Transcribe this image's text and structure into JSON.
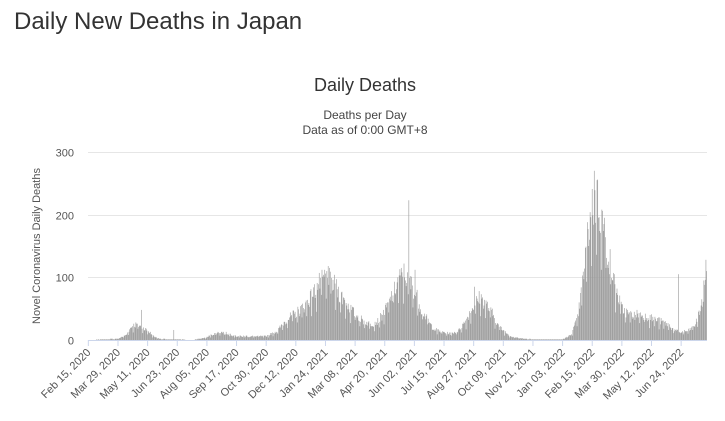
{
  "page": {
    "title": "Daily New Deaths in Japan"
  },
  "chart_data": {
    "type": "bar",
    "title": "Daily Deaths",
    "subtitle": "Deaths per Day",
    "subtitle2": "Data as of 0:00 GMT+8",
    "ylabel": "Novel Coronavirus Daily Deaths",
    "xlabel": "",
    "ylim": [
      0,
      300
    ],
    "yticks": [
      0,
      100,
      200,
      300
    ],
    "grid": true,
    "bar_color": "#999999",
    "x_start": "2020-02-15",
    "x_end": "2022-07-31",
    "x_tick_labels": [
      "Feb 15, 2020",
      "Mar 29, 2020",
      "May 11, 2020",
      "Jun 23, 2020",
      "Aug 05, 2020",
      "Sep 17, 2020",
      "Oct 30, 2020",
      "Dec 12, 2020",
      "Jan 24, 2021",
      "Mar 08, 2021",
      "Apr 20, 2021",
      "Jun 02, 2021",
      "Jul 15, 2021",
      "Aug 27, 2021",
      "Oct 09, 2021",
      "Nov 21, 2021",
      "Jan 03, 2022",
      "Feb 15, 2022",
      "Mar 30, 2022",
      "May 12, 2022",
      "Jun 24, 2022"
    ],
    "trend": [
      [
        "2020-02-15",
        0
      ],
      [
        "2020-03-10",
        1
      ],
      [
        "2020-03-29",
        2
      ],
      [
        "2020-04-10",
        8
      ],
      [
        "2020-04-18",
        22
      ],
      [
        "2020-04-25",
        25
      ],
      [
        "2020-05-01",
        22
      ],
      [
        "2020-05-11",
        15
      ],
      [
        "2020-05-20",
        6
      ],
      [
        "2020-05-28",
        2
      ],
      [
        "2020-06-10",
        1
      ],
      [
        "2020-06-23",
        1
      ],
      [
        "2020-07-15",
        0
      ],
      [
        "2020-08-05",
        4
      ],
      [
        "2020-08-15",
        10
      ],
      [
        "2020-08-25",
        13
      ],
      [
        "2020-09-05",
        10
      ],
      [
        "2020-09-17",
        6
      ],
      [
        "2020-10-01",
        6
      ],
      [
        "2020-10-30",
        6
      ],
      [
        "2020-11-15",
        14
      ],
      [
        "2020-11-25",
        28
      ],
      [
        "2020-12-05",
        38
      ],
      [
        "2020-12-12",
        42
      ],
      [
        "2020-12-25",
        55
      ],
      [
        "2021-01-05",
        72
      ],
      [
        "2021-01-15",
        90
      ],
      [
        "2021-01-24",
        100
      ],
      [
        "2021-02-01",
        95
      ],
      [
        "2021-02-15",
        72
      ],
      [
        "2021-03-01",
        50
      ],
      [
        "2021-03-08",
        42
      ],
      [
        "2021-03-20",
        30
      ],
      [
        "2021-04-01",
        25
      ],
      [
        "2021-04-10",
        30
      ],
      [
        "2021-04-20",
        45
      ],
      [
        "2021-05-01",
        72
      ],
      [
        "2021-05-10",
        95
      ],
      [
        "2021-05-18",
        105
      ],
      [
        "2021-05-25",
        95
      ],
      [
        "2021-06-02",
        80
      ],
      [
        "2021-06-12",
        50
      ],
      [
        "2021-06-25",
        25
      ],
      [
        "2021-07-05",
        15
      ],
      [
        "2021-07-15",
        12
      ],
      [
        "2021-07-25",
        10
      ],
      [
        "2021-08-05",
        15
      ],
      [
        "2021-08-15",
        30
      ],
      [
        "2021-08-27",
        55
      ],
      [
        "2021-09-05",
        68
      ],
      [
        "2021-09-12",
        60
      ],
      [
        "2021-09-22",
        45
      ],
      [
        "2021-10-01",
        25
      ],
      [
        "2021-10-09",
        15
      ],
      [
        "2021-10-20",
        6
      ],
      [
        "2021-11-01",
        3
      ],
      [
        "2021-11-21",
        1
      ],
      [
        "2021-12-20",
        1
      ],
      [
        "2022-01-03",
        1
      ],
      [
        "2022-01-15",
        8
      ],
      [
        "2022-01-25",
        35
      ],
      [
        "2022-02-01",
        90
      ],
      [
        "2022-02-08",
        160
      ],
      [
        "2022-02-15",
        215
      ],
      [
        "2022-02-22",
        225
      ],
      [
        "2022-03-01",
        195
      ],
      [
        "2022-03-10",
        140
      ],
      [
        "2022-03-20",
        85
      ],
      [
        "2022-03-30",
        50
      ],
      [
        "2022-04-10",
        40
      ],
      [
        "2022-04-20",
        42
      ],
      [
        "2022-05-01",
        40
      ],
      [
        "2022-05-12",
        35
      ],
      [
        "2022-05-25",
        30
      ],
      [
        "2022-06-05",
        25
      ],
      [
        "2022-06-15",
        15
      ],
      [
        "2022-06-24",
        12
      ],
      [
        "2022-07-05",
        15
      ],
      [
        "2022-07-15",
        25
      ],
      [
        "2022-07-22",
        50
      ],
      [
        "2022-07-27",
        80
      ],
      [
        "2022-07-31",
        120
      ]
    ],
    "notable_points": [
      [
        "2020-05-02",
        48
      ],
      [
        "2020-06-18",
        16
      ],
      [
        "2021-01-28",
        118
      ],
      [
        "2021-05-25",
        223
      ],
      [
        "2021-06-03",
        112
      ],
      [
        "2021-08-28",
        85
      ],
      [
        "2022-02-18",
        270
      ],
      [
        "2022-02-22",
        255
      ],
      [
        "2022-06-20",
        105
      ],
      [
        "2022-07-30",
        128
      ]
    ]
  }
}
